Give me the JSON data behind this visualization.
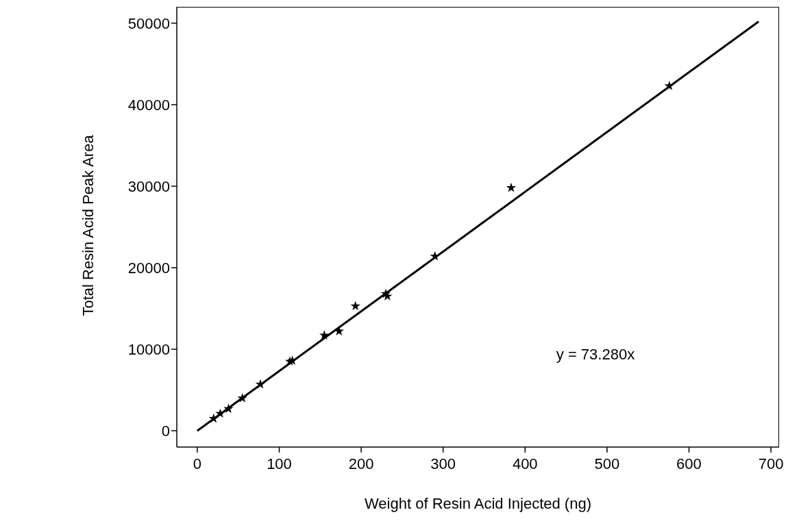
{
  "chart_data": {
    "type": "scatter",
    "xlabel": "Weight of Resin Acid Injected (ng)",
    "ylabel": "Total Resin Acid Peak Area",
    "xlim": [
      -25,
      710
    ],
    "ylim": [
      -2000,
      52000
    ],
    "xticks": [
      0,
      100,
      200,
      300,
      400,
      500,
      600,
      700
    ],
    "yticks": [
      0,
      10000,
      20000,
      30000,
      40000,
      50000
    ],
    "grid": false,
    "marker": "star",
    "annotations": [
      "y = 73.280x"
    ],
    "series": [
      {
        "color": "#000000",
        "x": [
          20,
          28,
          38,
          55,
          77,
          113,
          116,
          155,
          173,
          193,
          230,
          232,
          290,
          383,
          576
        ],
        "values": [
          1500,
          2100,
          2700,
          4000,
          5700,
          8500,
          8600,
          11700,
          12200,
          15300,
          16800,
          16500,
          21400,
          29800,
          42300
        ]
      },
      {
        "type": "line",
        "color": "#000000",
        "line_style": "solid",
        "marker": "none",
        "x": [
          0,
          685
        ],
        "values": [
          0,
          50200
        ]
      }
    ]
  }
}
